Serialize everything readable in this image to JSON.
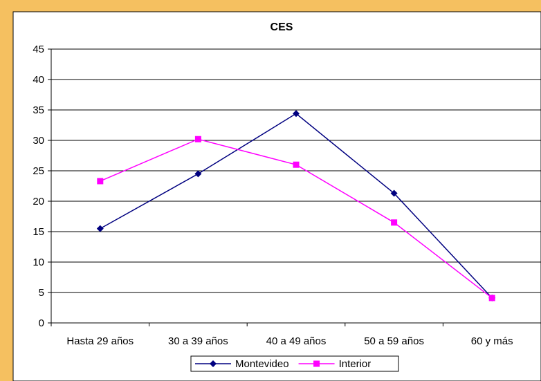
{
  "chart_data": {
    "type": "line",
    "title": "CES",
    "xlabel": "",
    "ylabel": "",
    "categories": [
      "Hasta 29 años",
      "30 a 39 años",
      "40 a 49 años",
      "50 a 59 años",
      "60 y más"
    ],
    "ylim": [
      0,
      45
    ],
    "yticks": [
      0,
      5,
      10,
      15,
      20,
      25,
      30,
      35,
      40,
      45
    ],
    "grid": "horizontal",
    "legend_position": "bottom",
    "series": [
      {
        "name": "Montevideo",
        "marker": "diamond",
        "color": "#000080",
        "values": [
          15.5,
          24.5,
          34.4,
          21.3,
          4.1
        ]
      },
      {
        "name": "Interior",
        "marker": "square",
        "color": "#FF00FF",
        "values": [
          23.3,
          30.2,
          26.0,
          16.5,
          4.1
        ]
      }
    ]
  },
  "colors": {
    "border": "#F5C060",
    "background": "#FFFFFF",
    "gridline": "#000000"
  }
}
